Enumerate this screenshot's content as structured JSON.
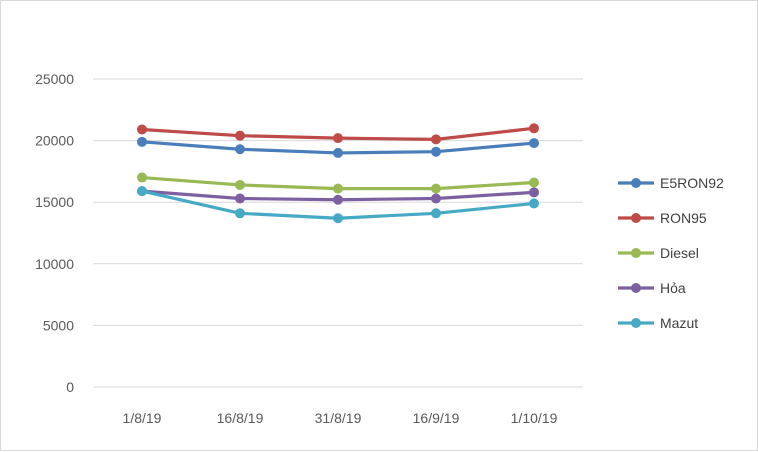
{
  "chart_data": {
    "type": "line",
    "title": "",
    "xlabel": "",
    "ylabel": "",
    "categories": [
      "1/8/19",
      "16/8/19",
      "31/8/19",
      "16/9/19",
      "1/10/19"
    ],
    "ylim": [
      0,
      25000
    ],
    "yticks": [
      "0",
      "5000",
      "10000",
      "15000",
      "20000",
      "25000"
    ],
    "grid": "horizontal",
    "legend_position": "right",
    "series": [
      {
        "name": "E5RON92",
        "color": "#4a7ebb",
        "values": [
          19900,
          19300,
          19000,
          19100,
          19800
        ]
      },
      {
        "name": "RON95",
        "color": "#be4b48",
        "values": [
          20900,
          20400,
          20200,
          20100,
          21000
        ]
      },
      {
        "name": "Diesel",
        "color": "#98b954",
        "values": [
          17000,
          16400,
          16100,
          16100,
          16600
        ]
      },
      {
        "name": "Hỏa",
        "color": "#7d60a0",
        "values": [
          15900,
          15300,
          15200,
          15300,
          15800
        ]
      },
      {
        "name": "Mazut",
        "color": "#46aac5",
        "values": [
          15900,
          14100,
          13700,
          14100,
          14900
        ]
      }
    ]
  }
}
